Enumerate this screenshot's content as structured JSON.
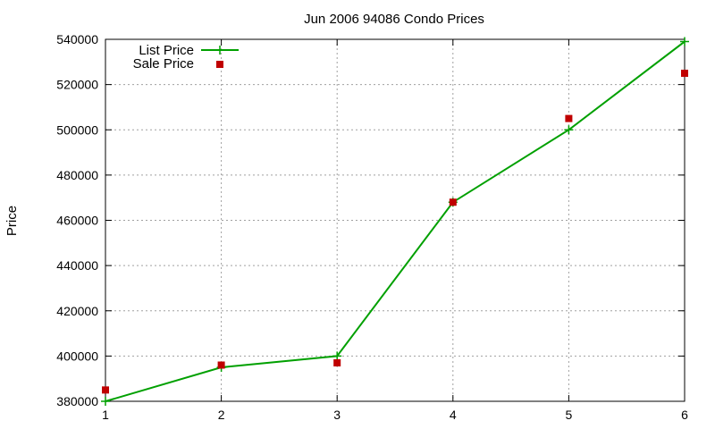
{
  "chart_data": {
    "type": "line",
    "title": "Jun 2006 94086 Condo Prices",
    "xlabel": "",
    "ylabel": "Price",
    "x": [
      1,
      2,
      3,
      4,
      5,
      6
    ],
    "xlim": [
      1,
      6
    ],
    "ylim": [
      380000,
      540000
    ],
    "xticks": [
      "1",
      "2",
      "3",
      "4",
      "5",
      "6"
    ],
    "yticks": [
      "380000",
      "400000",
      "420000",
      "440000",
      "460000",
      "480000",
      "500000",
      "520000",
      "540000"
    ],
    "grid": true,
    "legend_position": "top-left",
    "series": [
      {
        "name": "List Price",
        "style": "line with plus markers",
        "color": "#00a000",
        "values": [
          380000,
          395000,
          400000,
          468000,
          500000,
          539000
        ]
      },
      {
        "name": "Sale Price",
        "style": "square markers",
        "color": "#c00000",
        "values": [
          385000,
          396000,
          397000,
          468000,
          505000,
          525000
        ]
      }
    ]
  }
}
